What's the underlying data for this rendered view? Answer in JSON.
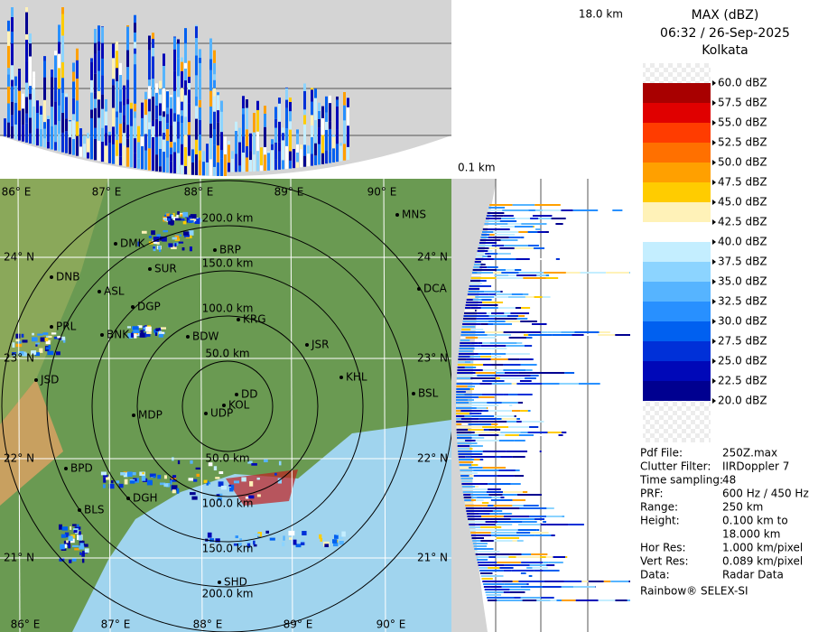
{
  "header": {
    "title": "MAX (dBZ)",
    "time": "06:32 / 26-Sep-2025",
    "location": "Kolkata"
  },
  "height_top": "18.0 km",
  "height_bottom": "0.1 km",
  "legend": [
    {
      "label": "60.0 dBZ",
      "color": "#f4f4f4"
    },
    {
      "label": "57.5 dBZ",
      "color": "#a80000"
    },
    {
      "label": "55.0 dBZ",
      "color": "#e00000"
    },
    {
      "label": "52.5 dBZ",
      "color": "#ff3c00"
    },
    {
      "label": "50.0 dBZ",
      "color": "#ff7000"
    },
    {
      "label": "47.5 dBZ",
      "color": "#ffa000"
    },
    {
      "label": "45.0 dBZ",
      "color": "#ffcc00"
    },
    {
      "label": "42.5 dBZ",
      "color": "#fff2b8"
    },
    {
      "label": "40.0 dBZ",
      "color": "#ffffff"
    },
    {
      "label": "37.5 dBZ",
      "color": "#c4eeff"
    },
    {
      "label": "35.0 dBZ",
      "color": "#8cd4ff"
    },
    {
      "label": "32.5 dBZ",
      "color": "#56b4ff"
    },
    {
      "label": "30.0 dBZ",
      "color": "#2890ff"
    },
    {
      "label": "27.5 dBZ",
      "color": "#0060f0"
    },
    {
      "label": "25.0 dBZ",
      "color": "#0030d8"
    },
    {
      "label": "22.5 dBZ",
      "color": "#0008b8"
    },
    {
      "label": "20.0 dBZ",
      "color": "#000090"
    }
  ],
  "info": [
    {
      "key": "Pdf File:",
      "value": [
        "250Z.max"
      ]
    },
    {
      "key": "Clutter Filter:",
      "value": [
        "IIRDoppler 7"
      ]
    },
    {
      "key": "Time sampling:",
      "value": [
        "48"
      ]
    },
    {
      "key": "PRF:",
      "value": [
        "600 Hz / 450 Hz"
      ]
    },
    {
      "key": "Range:",
      "value": [
        "250 km"
      ]
    },
    {
      "key": "Height:",
      "value": [
        "0.100 km to",
        "18.000 km"
      ]
    },
    {
      "key": "Hor Res:",
      "value": [
        "1.000 km/pixel"
      ]
    },
    {
      "key": "Vert Res:",
      "value": [
        "0.089 km/pixel"
      ]
    },
    {
      "key": "Data:",
      "value": [
        "Radar Data"
      ]
    }
  ],
  "footer": "Rainbow® SELEX-SI",
  "map": {
    "longitudes": [
      "86° E",
      "87° E",
      "88° E",
      "89° E",
      "90° E"
    ],
    "latitudes": [
      "24° N",
      "23° N",
      "22° N",
      "21° N"
    ],
    "rings_north": [
      "50.0 km",
      "100.0 km",
      "150.0 km",
      "200.0 km"
    ],
    "rings_south": [
      "50.0 km",
      "100.0 km",
      "150.0 km",
      "200.0 km"
    ],
    "cities": [
      "MNS",
      "DMK",
      "BRP",
      "SUR",
      "DNB",
      "ASL",
      "DGP",
      "KRG",
      "DCA",
      "PRL",
      "BNK",
      "BDW",
      "JSR",
      "JSD",
      "KHL",
      "BSL",
      "DD",
      "KOL",
      "MDP",
      "UDP",
      "BPD",
      "DGH",
      "BLS",
      "SHD"
    ]
  }
}
